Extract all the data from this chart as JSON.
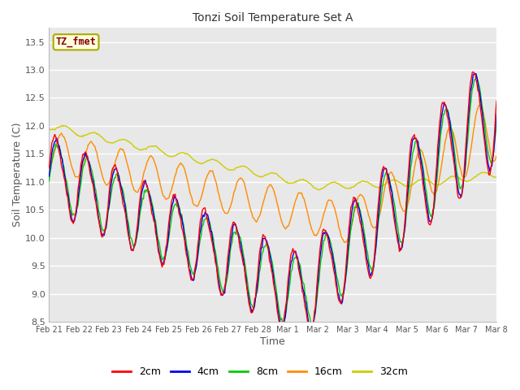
{
  "title": "Tonzi Soil Temperature Set A",
  "xlabel": "Time",
  "ylabel": "Soil Temperature (C)",
  "ylim": [
    8.5,
    13.75
  ],
  "annotation": "TZ_fmet",
  "annotation_color": "#8B0000",
  "annotation_bg": "#FFFFE0",
  "annotation_edge": "#AAAA00",
  "bg_color": "#DCDCDC",
  "plot_bg": "#E8E8E8",
  "line_colors": {
    "2cm": "#FF0000",
    "4cm": "#0000EE",
    "8cm": "#00CC00",
    "16cm": "#FF8C00",
    "32cm": "#CCCC00"
  },
  "x_tick_labels": [
    "Feb 21",
    "Feb 22",
    "Feb 23",
    "Feb 24",
    "Feb 25",
    "Feb 26",
    "Feb 27",
    "Feb 28",
    "Mar 1",
    "Mar 2",
    "Mar 3",
    "Mar 4",
    "Mar 5",
    "Mar 6",
    "Mar 7",
    "Mar 8"
  ],
  "num_points": 480
}
